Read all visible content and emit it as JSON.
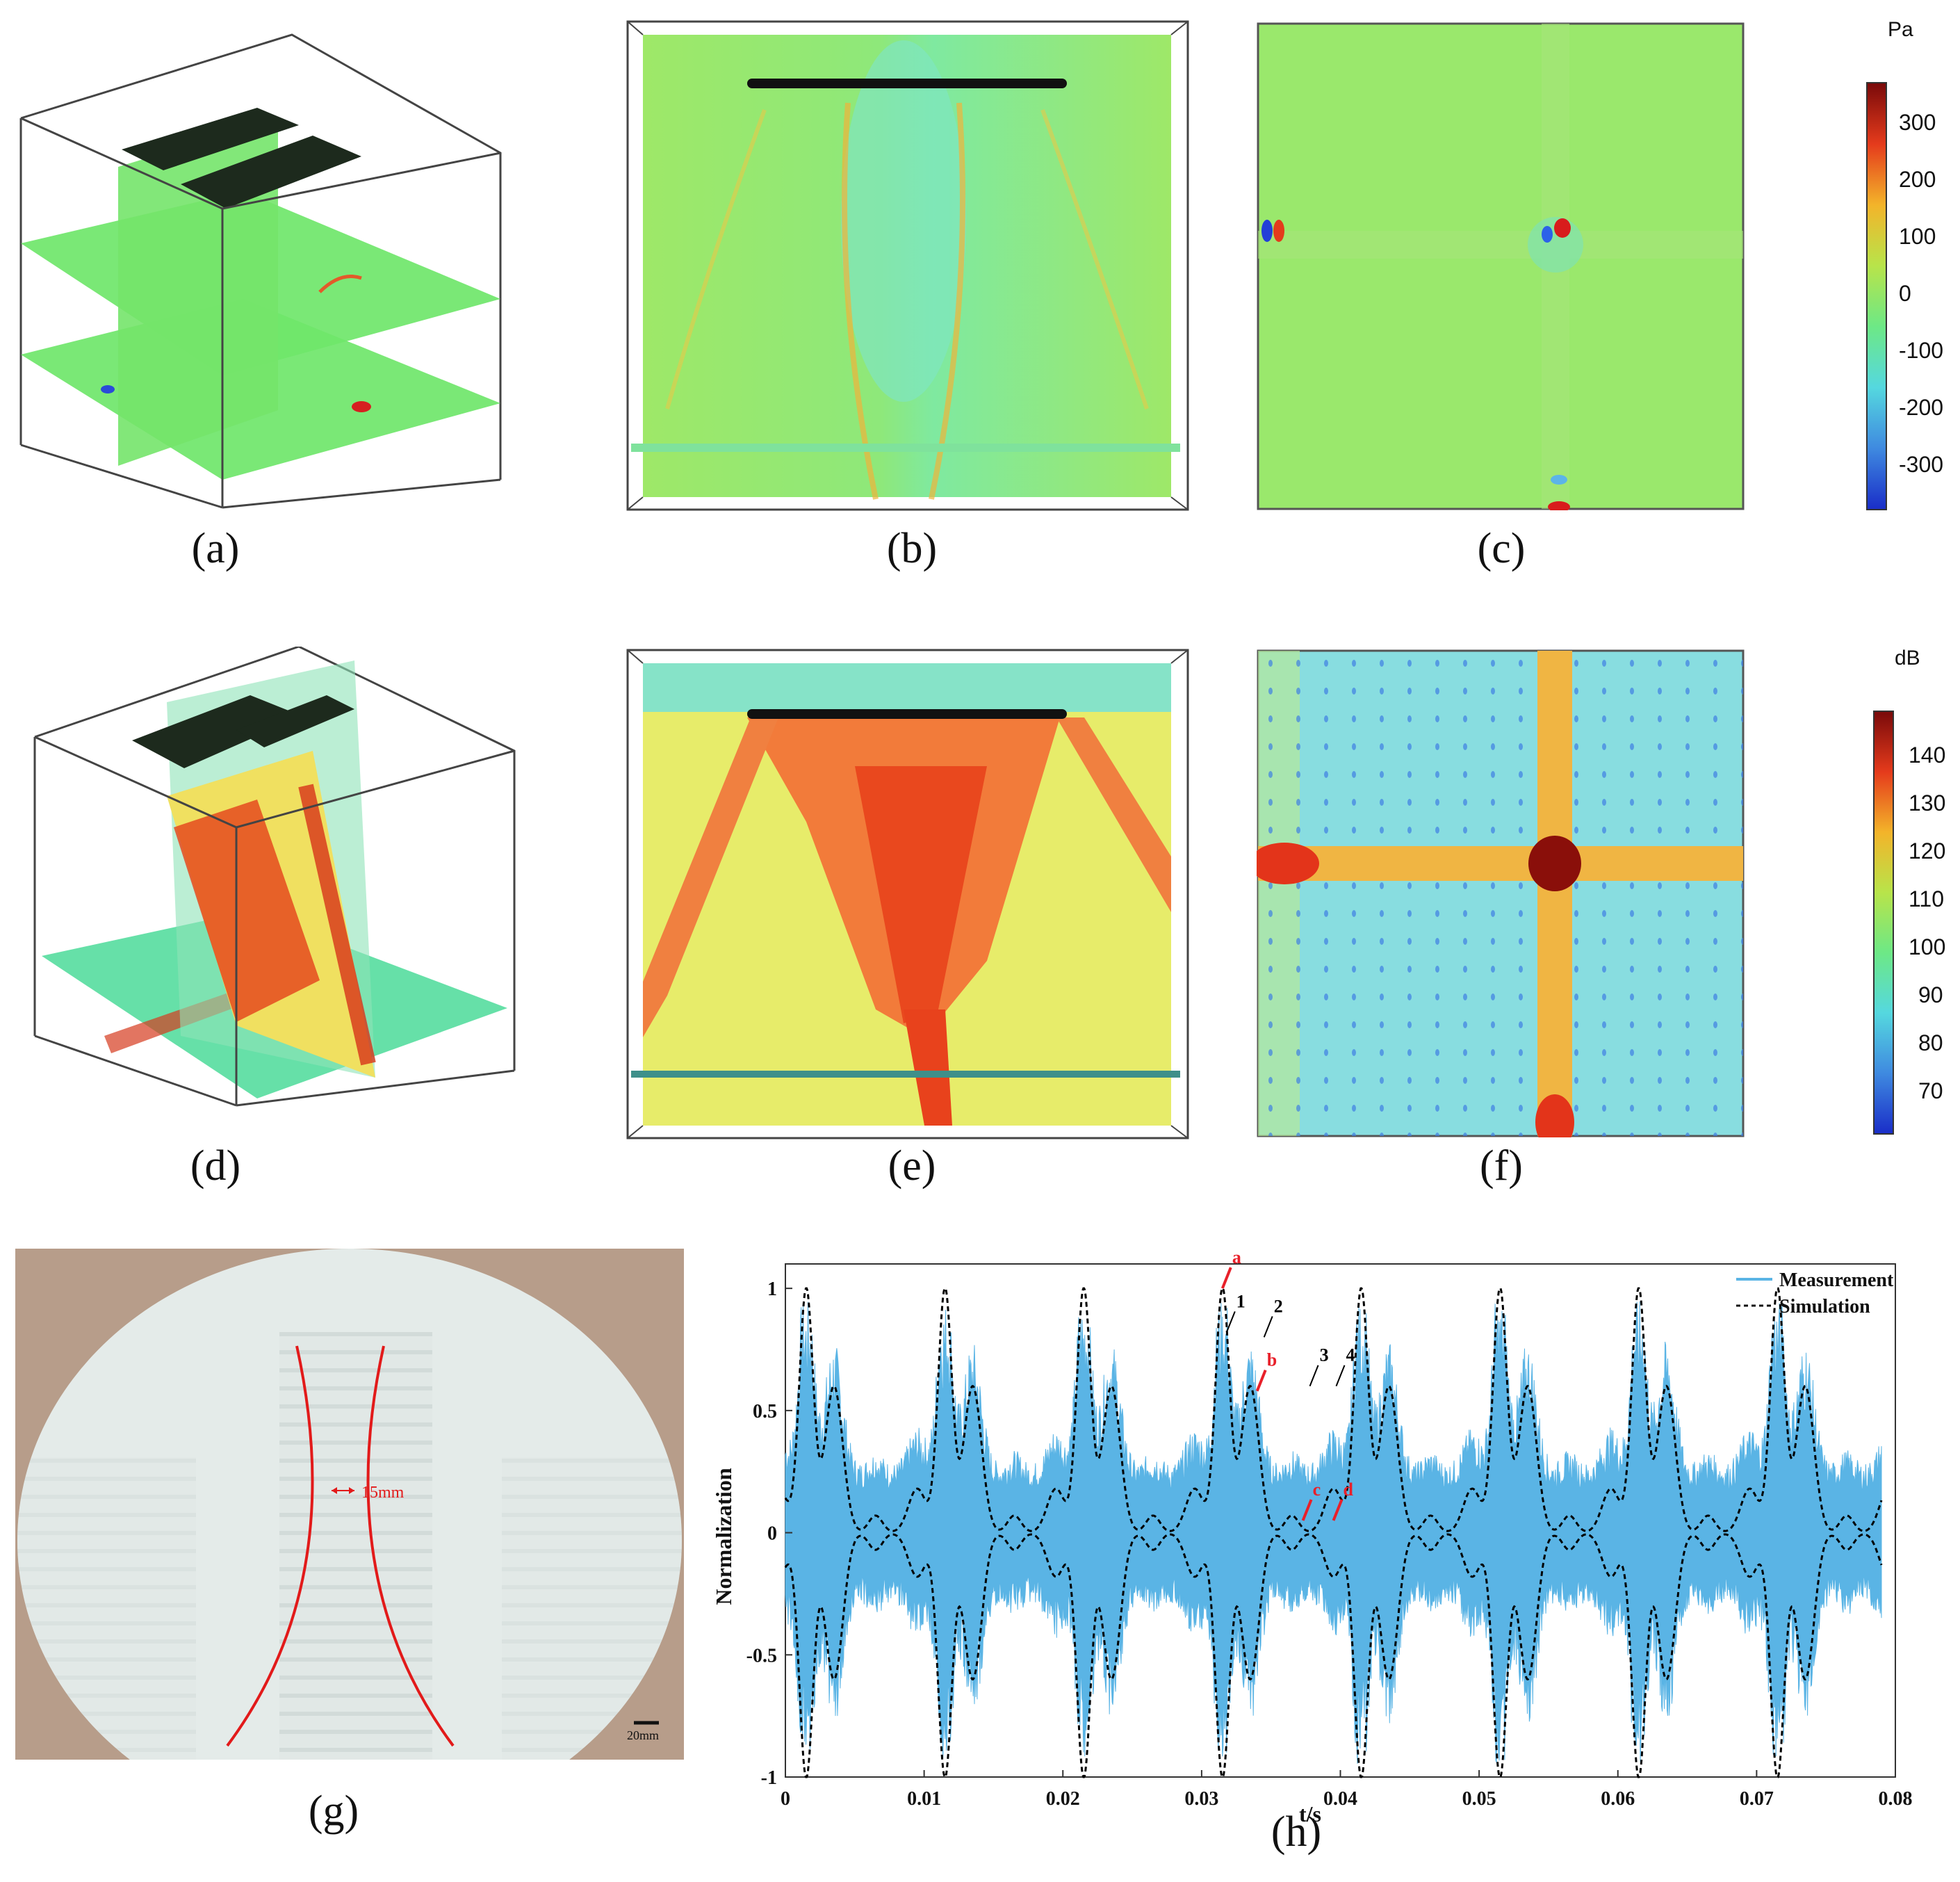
{
  "captions": {
    "a": "(a)",
    "b": "(b)",
    "c": "(c)",
    "d": "(d)",
    "e": "(e)",
    "f": "(f)",
    "g": "(g)",
    "h": "(h)"
  },
  "colorbar_pa": {
    "unit": "Pa",
    "ticks": [
      "300",
      "200",
      "100",
      "0",
      "-100",
      "-200",
      "-300"
    ]
  },
  "colorbar_db": {
    "unit": "dB",
    "ticks": [
      "140",
      "130",
      "120",
      "110",
      "100",
      "90",
      "80",
      "70"
    ]
  },
  "photo": {
    "width_label": "15mm",
    "scale_label": "20mm"
  },
  "chart_data": {
    "type": "line",
    "xlabel": "t/s",
    "ylabel": "Normalization",
    "xlim": [
      0,
      0.08
    ],
    "ylim": [
      -1,
      1.1
    ],
    "x_ticks": [
      "0",
      "0.01",
      "0.02",
      "0.03",
      "0.04",
      "0.05",
      "0.06",
      "0.07",
      "0.08"
    ],
    "y_ticks": [
      "-1",
      "-0.5",
      "0",
      "0.5",
      "1"
    ],
    "legend": {
      "placement": "top-right",
      "entries": [
        "Measurement",
        "Simulation"
      ]
    },
    "series": [
      {
        "name": "Measurement",
        "color": "#5ab4e5",
        "description_values": {
          "period": 0.01,
          "amplitude_max": 0.95
        }
      },
      {
        "name": "Simulation",
        "color": "#000000",
        "period": 0.01,
        "peak_times": [
          0.0015,
          0.0115,
          0.0215,
          0.0315,
          0.0415,
          0.0515,
          0.0615,
          0.0715
        ],
        "peak_value": 1.0,
        "secondary_peak": 0.6
      }
    ],
    "annotations": [
      {
        "text": "a",
        "color": "#e8202a",
        "x": 0.0315,
        "y": 1.0
      },
      {
        "text": "1",
        "color": "#000000",
        "x": 0.0318,
        "y": 0.82
      },
      {
        "text": "2",
        "color": "#000000",
        "x": 0.0345,
        "y": 0.8
      },
      {
        "text": "b",
        "color": "#e8202a",
        "x": 0.034,
        "y": 0.58
      },
      {
        "text": "3",
        "color": "#000000",
        "x": 0.0378,
        "y": 0.6
      },
      {
        "text": "4",
        "color": "#000000",
        "x": 0.0397,
        "y": 0.6
      },
      {
        "text": "c",
        "color": "#e8202a",
        "x": 0.0373,
        "y": 0.05
      },
      {
        "text": "d",
        "color": "#e8202a",
        "x": 0.0395,
        "y": 0.05
      }
    ]
  }
}
